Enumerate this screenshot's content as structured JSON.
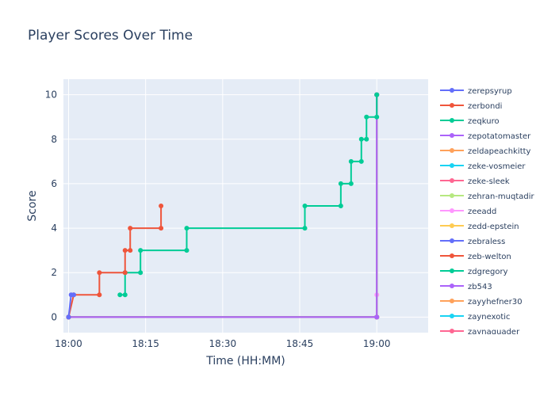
{
  "chart_data": {
    "type": "line",
    "line_shape": "step",
    "title": "Player Scores Over Time",
    "xlabel": "Time (HH:MM)",
    "ylabel": "Score",
    "x_ticks": [
      "18:00",
      "18:15",
      "18:30",
      "18:45",
      "19:00"
    ],
    "y_ticks": [
      0,
      2,
      4,
      6,
      8,
      10
    ],
    "xlim": [
      "17:59",
      "19:10"
    ],
    "ylim": [
      -0.7,
      10.7
    ],
    "grid": true,
    "legend_position": "right",
    "series": [
      {
        "name": "zerepsyrup",
        "color": "#636efa",
        "points": [
          [
            "18:00",
            0
          ],
          [
            "18:00:30",
            1
          ],
          [
            "18:01",
            1
          ]
        ]
      },
      {
        "name": "zerbondi",
        "color": "#EF553B",
        "points": [
          [
            "18:00",
            0
          ],
          [
            "18:01",
            1
          ],
          [
            "18:06",
            1
          ],
          [
            "18:06",
            2
          ],
          [
            "18:11",
            2
          ],
          [
            "18:11",
            3
          ],
          [
            "18:12",
            3
          ],
          [
            "18:12",
            4
          ],
          [
            "18:18",
            4
          ],
          [
            "18:18",
            5
          ]
        ]
      },
      {
        "name": "zeqkuro",
        "color": "#00cc96",
        "points": [
          [
            "18:10",
            1
          ],
          [
            "18:11",
            1
          ],
          [
            "18:11",
            2
          ],
          [
            "18:14",
            2
          ],
          [
            "18:14",
            3
          ],
          [
            "18:23",
            3
          ],
          [
            "18:23",
            4
          ],
          [
            "18:46",
            4
          ],
          [
            "18:46",
            5
          ],
          [
            "18:53",
            5
          ],
          [
            "18:53",
            6
          ],
          [
            "18:55",
            6
          ],
          [
            "18:55",
            7
          ],
          [
            "18:57",
            7
          ],
          [
            "18:57",
            8
          ],
          [
            "18:58",
            8
          ],
          [
            "18:58",
            9
          ],
          [
            "19:00",
            9
          ],
          [
            "19:00",
            10
          ]
        ]
      },
      {
        "name": "zepotatomaster",
        "color": "#ab63fa",
        "points": [
          [
            "18:00",
            0
          ],
          [
            "19:00",
            0
          ],
          [
            "19:00",
            10
          ]
        ]
      },
      {
        "name": "zeldapeachkitty",
        "color": "#FFA15A",
        "points": [
          [
            "18:00",
            0
          ],
          [
            "19:00",
            0
          ],
          [
            "19:00",
            10
          ]
        ]
      },
      {
        "name": "zeke-vosmeier",
        "color": "#19d3f3",
        "points": [
          [
            "18:00",
            0
          ],
          [
            "19:00",
            0
          ],
          [
            "19:00",
            10
          ]
        ]
      },
      {
        "name": "zeke-sleek",
        "color": "#FF6692",
        "points": [
          [
            "18:00",
            0
          ],
          [
            "19:00",
            0
          ],
          [
            "19:00",
            10
          ]
        ]
      },
      {
        "name": "zehran-muqtadir",
        "color": "#B6E880",
        "points": [
          [
            "18:00",
            0
          ],
          [
            "19:00",
            0
          ],
          [
            "19:00",
            10
          ]
        ]
      },
      {
        "name": "zeeadd",
        "color": "#FF97FF",
        "points": [
          [
            "18:00",
            0
          ],
          [
            "19:00",
            0
          ],
          [
            "19:00",
            1
          ]
        ]
      },
      {
        "name": "zedd-epstein",
        "color": "#FECB52",
        "points": [
          [
            "18:00",
            0
          ],
          [
            "19:00",
            0
          ],
          [
            "19:00",
            10
          ]
        ]
      },
      {
        "name": "zebraless",
        "color": "#636efa",
        "points": [
          [
            "18:00",
            0
          ],
          [
            "19:00",
            0
          ],
          [
            "19:00",
            10
          ]
        ]
      },
      {
        "name": "zeb-welton",
        "color": "#EF553B",
        "points": [
          [
            "18:00",
            0
          ],
          [
            "19:00",
            0
          ],
          [
            "19:00",
            10
          ]
        ]
      },
      {
        "name": "zdgregory",
        "color": "#00cc96",
        "points": [
          [
            "18:00",
            0
          ],
          [
            "19:00",
            0
          ],
          [
            "19:00",
            10
          ]
        ]
      },
      {
        "name": "zb543",
        "color": "#ab63fa",
        "points": [
          [
            "18:00",
            0
          ],
          [
            "19:00",
            0
          ],
          [
            "19:00",
            10
          ]
        ]
      },
      {
        "name": "zayyhefner30",
        "color": "#FFA15A",
        "points": [
          [
            "18:00",
            0
          ],
          [
            "19:00",
            0
          ],
          [
            "19:00",
            10
          ]
        ]
      },
      {
        "name": "zaynexotic",
        "color": "#19d3f3",
        "points": [
          [
            "18:00",
            0
          ],
          [
            "19:00",
            0
          ],
          [
            "19:00",
            10
          ]
        ]
      },
      {
        "name": "zaynaquader",
        "color": "#FF6692",
        "points": [
          [
            "18:00",
            0
          ],
          [
            "19:00",
            0
          ],
          [
            "19:00",
            10
          ]
        ]
      }
    ]
  }
}
